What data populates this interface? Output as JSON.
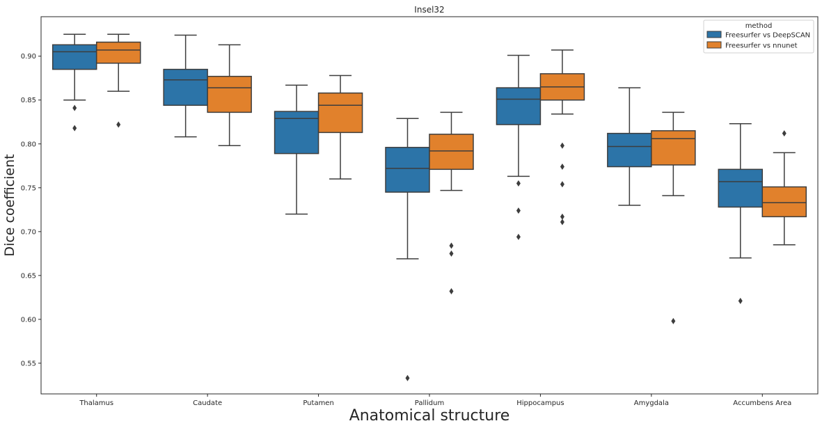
{
  "chart_data": {
    "type": "box",
    "title": "Insel32",
    "xlabel": "Anatomical structure",
    "ylabel": "Dice coefficient",
    "ylim": [
      0.515,
      0.945
    ],
    "yticks": [
      0.55,
      0.6,
      0.65,
      0.7,
      0.75,
      0.8,
      0.85,
      0.9
    ],
    "ytick_labels": [
      "0.55",
      "0.60",
      "0.65",
      "0.70",
      "0.75",
      "0.80",
      "0.85",
      "0.90"
    ],
    "grid": false,
    "legend": {
      "title": "method",
      "position": "top-right"
    },
    "categories": [
      "Thalamus",
      "Caudate",
      "Putamen",
      "Pallidum",
      "Hippocampus",
      "Amygdala",
      "Accumbens Area"
    ],
    "series": [
      {
        "name": "Freesurfer vs DeepSCAN",
        "color": "#2c74a8",
        "boxes": [
          {
            "whisker_low": 0.85,
            "q1": 0.885,
            "median": 0.905,
            "q3": 0.913,
            "whisker_high": 0.925,
            "outliers": [
              0.841,
              0.818
            ]
          },
          {
            "whisker_low": 0.808,
            "q1": 0.844,
            "median": 0.873,
            "q3": 0.885,
            "whisker_high": 0.924,
            "outliers": []
          },
          {
            "whisker_low": 0.72,
            "q1": 0.789,
            "median": 0.829,
            "q3": 0.837,
            "whisker_high": 0.867,
            "outliers": []
          },
          {
            "whisker_low": 0.669,
            "q1": 0.745,
            "median": 0.772,
            "q3": 0.796,
            "whisker_high": 0.829,
            "outliers": [
              0.533
            ]
          },
          {
            "whisker_low": 0.763,
            "q1": 0.822,
            "median": 0.851,
            "q3": 0.864,
            "whisker_high": 0.901,
            "outliers": [
              0.755,
              0.724,
              0.694
            ]
          },
          {
            "whisker_low": 0.73,
            "q1": 0.774,
            "median": 0.797,
            "q3": 0.812,
            "whisker_high": 0.864,
            "outliers": []
          },
          {
            "whisker_low": 0.67,
            "q1": 0.728,
            "median": 0.757,
            "q3": 0.771,
            "whisker_high": 0.823,
            "outliers": [
              0.621
            ]
          }
        ]
      },
      {
        "name": "Freesurfer vs nnunet",
        "color": "#e1812c",
        "boxes": [
          {
            "whisker_low": 0.86,
            "q1": 0.892,
            "median": 0.907,
            "q3": 0.916,
            "whisker_high": 0.925,
            "outliers": [
              0.822
            ]
          },
          {
            "whisker_low": 0.798,
            "q1": 0.836,
            "median": 0.864,
            "q3": 0.877,
            "whisker_high": 0.913,
            "outliers": []
          },
          {
            "whisker_low": 0.76,
            "q1": 0.813,
            "median": 0.844,
            "q3": 0.858,
            "whisker_high": 0.878,
            "outliers": []
          },
          {
            "whisker_low": 0.747,
            "q1": 0.771,
            "median": 0.792,
            "q3": 0.811,
            "whisker_high": 0.836,
            "outliers": [
              0.684,
              0.675,
              0.632
            ]
          },
          {
            "whisker_low": 0.834,
            "q1": 0.85,
            "median": 0.865,
            "q3": 0.88,
            "whisker_high": 0.907,
            "outliers": [
              0.798,
              0.774,
              0.754,
              0.717,
              0.711
            ]
          },
          {
            "whisker_low": 0.741,
            "q1": 0.776,
            "median": 0.806,
            "q3": 0.815,
            "whisker_high": 0.836,
            "outliers": [
              0.598
            ]
          },
          {
            "whisker_low": 0.685,
            "q1": 0.717,
            "median": 0.733,
            "q3": 0.751,
            "whisker_high": 0.79,
            "outliers": [
              0.812
            ]
          }
        ]
      }
    ]
  }
}
